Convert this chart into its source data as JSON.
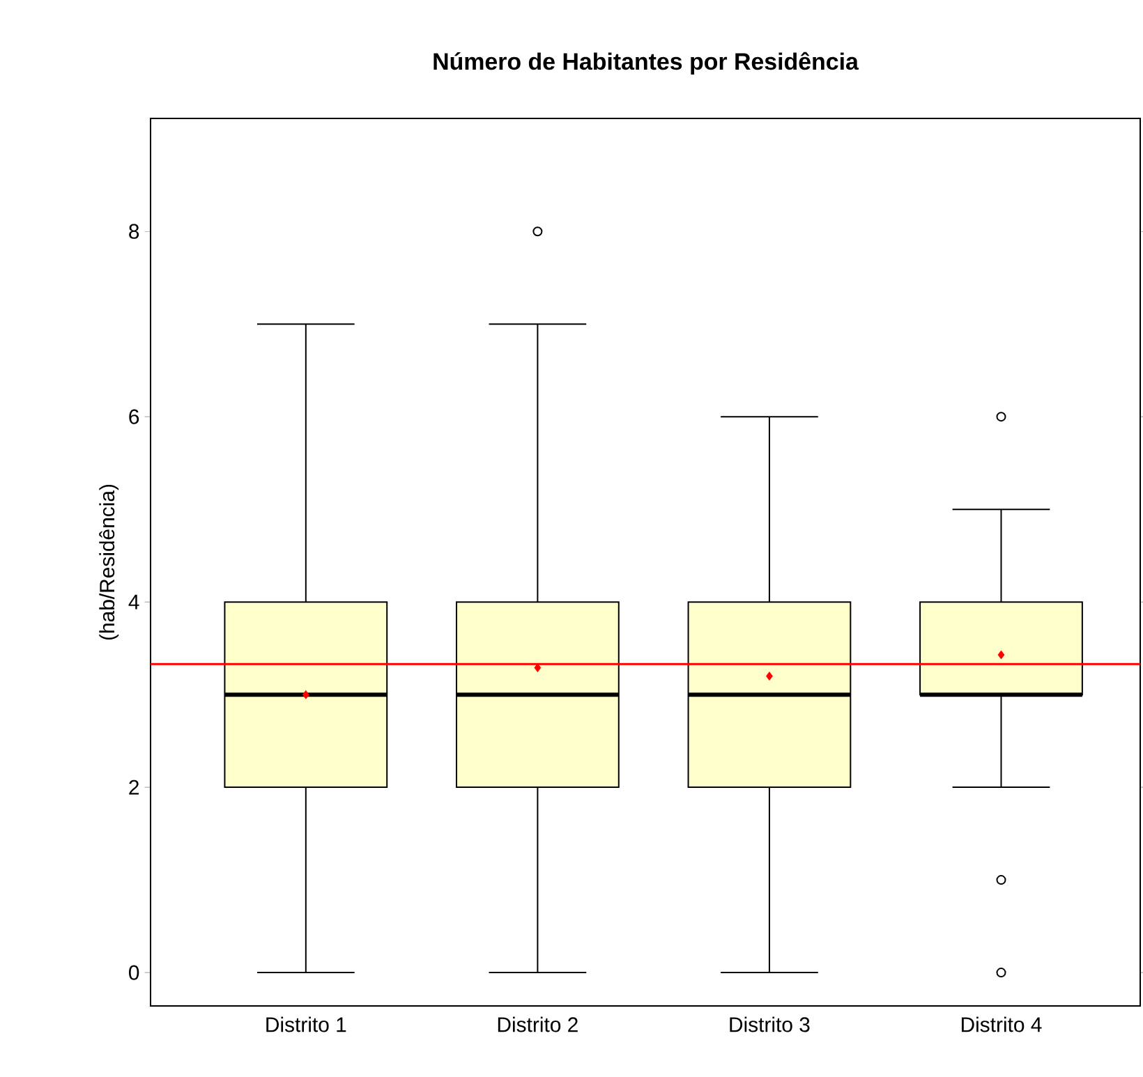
{
  "chart_data": {
    "type": "box",
    "title": "Número de Habitantes por Residência",
    "ylabel": "(hab/Residência)",
    "categories": [
      "Distrito 1",
      "Distrito 2",
      "Distrito 3",
      "Distrito 4"
    ],
    "series": [
      {
        "color": "#ffffcc",
        "boxes": [
          {
            "low": 0,
            "q1": 2,
            "median": 3,
            "q3": 4,
            "high": 7,
            "mean": 3.0
          },
          {
            "low": 0,
            "q1": 2,
            "median": 3,
            "q3": 4,
            "high": 7,
            "mean": 3.29,
            "outliers": [
              8
            ]
          },
          {
            "low": 0,
            "q1": 2,
            "median": 3,
            "q3": 4,
            "high": 6,
            "mean": 3.2
          },
          {
            "low": 2,
            "q1": 3,
            "median": 3,
            "q3": 4,
            "high": 5,
            "mean": 3.43,
            "outliers": [
              6,
              1,
              0
            ]
          }
        ]
      }
    ],
    "ylim": [
      -0.36,
      9.22
    ],
    "yticks": [
      0,
      2,
      4,
      6,
      8
    ],
    "ref_lines": [
      {
        "axis": "y",
        "value": 3.33,
        "color": "#ff0000"
      }
    ],
    "grid": false
  }
}
